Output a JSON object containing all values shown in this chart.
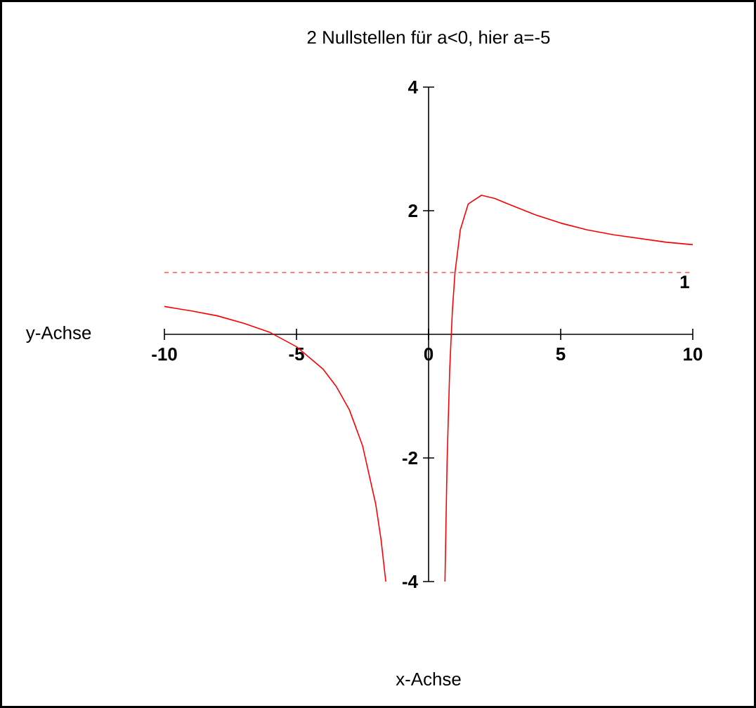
{
  "chart_data": {
    "type": "line",
    "title": "2 Nullstellen für a<0, hier a=-5",
    "xlabel": "x-Achse",
    "ylabel": "y-Achse",
    "xlim": [
      -10,
      10
    ],
    "ylim": [
      -4,
      4
    ],
    "xticks": [
      -10,
      -5,
      0,
      5,
      10
    ],
    "yticks": [
      -4,
      -2,
      2,
      4
    ],
    "grid": false,
    "marker": "none",
    "line_style": "solid",
    "series": [
      {
        "color": "#ff0000",
        "x": [
          -10,
          -9,
          -8,
          -7,
          -6,
          -5,
          -4,
          -3.5,
          -3,
          -2.5,
          -2,
          -1.8,
          -1.62
        ],
        "values": [
          0.45,
          0.38,
          0.3,
          0.18,
          0.03,
          -0.2,
          -0.56,
          -0.84,
          -1.22,
          -1.8,
          -2.75,
          -3.32,
          -4
        ]
      },
      {
        "color": "#ff0000",
        "x": [
          0.62,
          0.7,
          0.8,
          0.9,
          1,
          1.2,
          1.5,
          2,
          2.5,
          3,
          4,
          5,
          6,
          7,
          8,
          9,
          10
        ],
        "values": [
          -4,
          -2.06,
          -0.56,
          0.38,
          1,
          1.69,
          2.11,
          2.25,
          2.2,
          2.11,
          1.94,
          1.8,
          1.69,
          1.61,
          1.55,
          1.49,
          1.45
        ]
      }
    ],
    "ref_lines": [
      {
        "axis": "y",
        "value": 1,
        "label": "1",
        "color": "#ff0000",
        "line_style": "dashed"
      }
    ]
  }
}
